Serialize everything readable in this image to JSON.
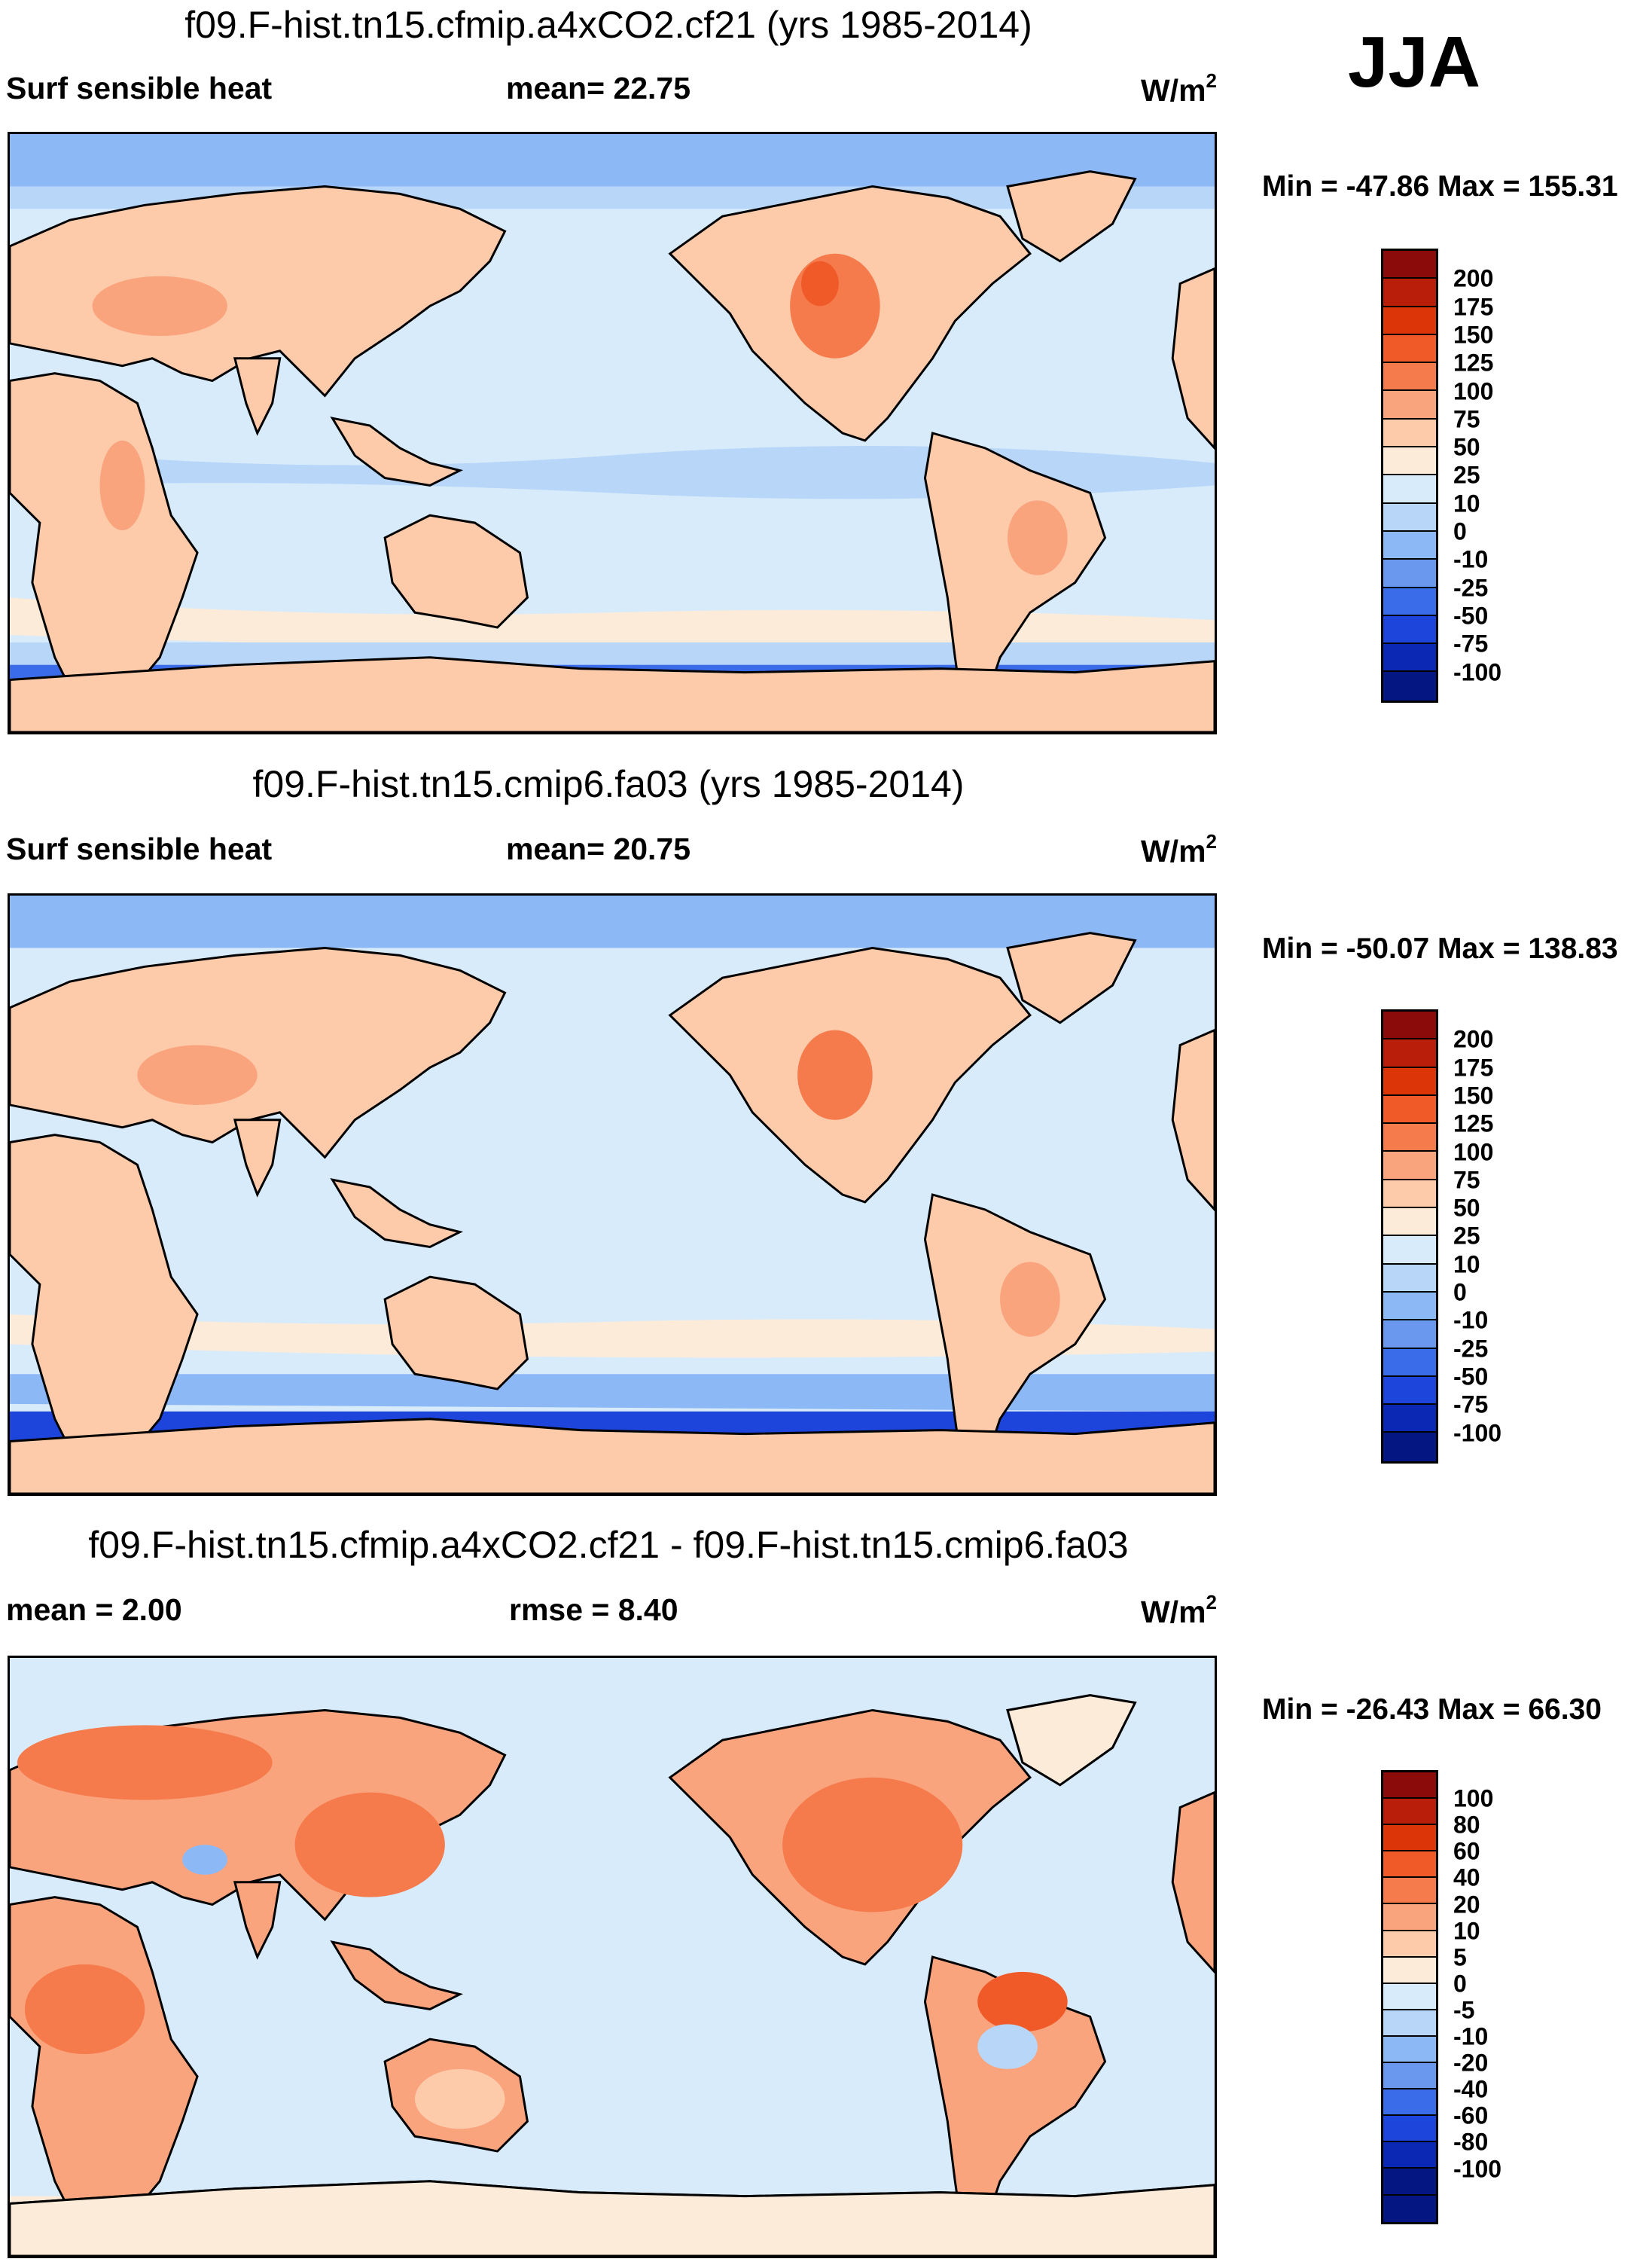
{
  "season": "JJA",
  "units": "W/m",
  "units_sup": "2",
  "panels": [
    {
      "title": "f09.F-hist.tn15.cfmip.a4xCO2.cf21 (yrs 1985-2014)",
      "left_label": "Surf sensible heat",
      "stat": "mean=  22.75",
      "minmax": "Min = -47.86 Max = 155.31",
      "colors": [
        "#8b0a0a",
        "#b81e0a",
        "#dc3608",
        "#f05a28",
        "#f57a4c",
        "#faa47e",
        "#fdcaaa",
        "#fdebd9",
        "#d8ebfb",
        "#b7d6f8",
        "#8db8f6",
        "#6a98ee",
        "#3a6be8",
        "#1d45dc",
        "#0a28b4",
        "#041682"
      ],
      "ticks": [
        "200",
        "175",
        "150",
        "125",
        "100",
        "75",
        "50",
        "25",
        "10",
        "0",
        "-10",
        "-25",
        "-50",
        "-75",
        "-100"
      ]
    },
    {
      "title": "f09.F-hist.tn15.cmip6.fa03 (yrs 1985-2014)",
      "left_label": "Surf sensible heat",
      "stat": "mean=  20.75",
      "minmax": "Min = -50.07 Max = 138.83",
      "colors": [
        "#8b0a0a",
        "#b81e0a",
        "#dc3608",
        "#f05a28",
        "#f57a4c",
        "#faa47e",
        "#fdcaaa",
        "#fdebd9",
        "#d8ebfb",
        "#b7d6f8",
        "#8db8f6",
        "#6a98ee",
        "#3a6be8",
        "#1d45dc",
        "#0a28b4",
        "#041682"
      ],
      "ticks": [
        "200",
        "175",
        "150",
        "125",
        "100",
        "75",
        "50",
        "25",
        "10",
        "0",
        "-10",
        "-25",
        "-50",
        "-75",
        "-100"
      ]
    },
    {
      "title": "f09.F-hist.tn15.cfmip.a4xCO2.cf21 - f09.F-hist.tn15.cmip6.fa03",
      "left_label": "mean =    2.00",
      "stat": "rmse =    8.40",
      "minmax": "Min = -26.43 Max =  66.30",
      "colors": [
        "#8b0a0a",
        "#b81e0a",
        "#dc3608",
        "#f05a28",
        "#f57a4c",
        "#faa47e",
        "#fdcaaa",
        "#fdebd9",
        "#d8ebfb",
        "#b7d6f8",
        "#8db8f6",
        "#6a98ee",
        "#3a6be8",
        "#1d45dc",
        "#0a28b4",
        "#041682",
        "#041682"
      ],
      "ticks": [
        "100",
        "80",
        "60",
        "40",
        "20",
        "10",
        "5",
        "0",
        "-5",
        "-10",
        "-20",
        "-40",
        "-60",
        "-80",
        "-100"
      ]
    }
  ]
}
